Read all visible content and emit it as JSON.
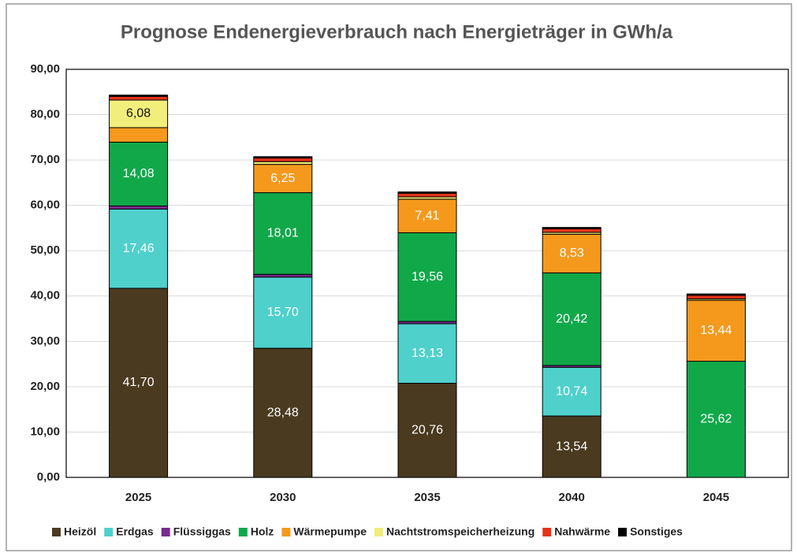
{
  "chart_data": {
    "type": "stacked_bar",
    "title": "Prognose Endenergieverbrauch nach Energieträger in GWh/a",
    "categories": [
      "2025",
      "2030",
      "2035",
      "2040",
      "2045"
    ],
    "ylim": [
      0,
      90
    ],
    "yticks": [
      {
        "value": 0,
        "label": "0,00"
      },
      {
        "value": 10,
        "label": "10,00"
      },
      {
        "value": 20,
        "label": "20,00"
      },
      {
        "value": 30,
        "label": "30,00"
      },
      {
        "value": 40,
        "label": "40,00"
      },
      {
        "value": 50,
        "label": "50,00"
      },
      {
        "value": 60,
        "label": "60,00"
      },
      {
        "value": 70,
        "label": "70,00"
      },
      {
        "value": 80,
        "label": "80,00"
      },
      {
        "value": 90,
        "label": "90,00"
      }
    ],
    "grid": true,
    "legend": "bottom",
    "series": [
      {
        "name": "Heizöl",
        "color": "#4a3a1f",
        "label_color": "#ffffff",
        "values": [
          41.7,
          28.48,
          20.76,
          13.54,
          0
        ],
        "value_labels": [
          "41,70",
          "28,48",
          "20,76",
          "13,54",
          null
        ]
      },
      {
        "name": "Erdgas",
        "color": "#4fd0cb",
        "label_color": "#ffffff",
        "values": [
          17.46,
          15.7,
          13.13,
          10.74,
          0
        ],
        "value_labels": [
          "17,46",
          "15,70",
          "13,13",
          "10,74",
          null
        ]
      },
      {
        "name": "Flüssiggas",
        "color": "#7a2a8e",
        "label_color": "#ffffff",
        "values": [
          0.7,
          0.6,
          0.5,
          0.4,
          0
        ],
        "value_labels": [
          null,
          null,
          null,
          null,
          null
        ]
      },
      {
        "name": "Holz",
        "color": "#11a84a",
        "label_color": "#ffffff",
        "values": [
          14.08,
          18.01,
          19.56,
          20.42,
          25.62
        ],
        "value_labels": [
          "14,08",
          "18,01",
          "19,56",
          "20,42",
          "25,62"
        ]
      },
      {
        "name": "Wärmepumpe",
        "color": "#f5991d",
        "label_color": "#ffffff",
        "values": [
          3.2,
          6.25,
          7.41,
          8.53,
          13.44
        ],
        "value_labels": [
          null,
          "6,25",
          "7,41",
          "8,53",
          "13,44"
        ]
      },
      {
        "name": "Nachtstromspeicherheizung",
        "color": "#f2ee7c",
        "label_color": "#111111",
        "values": [
          6.08,
          0.6,
          0.5,
          0.4,
          0.3
        ],
        "value_labels": [
          "6,08",
          null,
          null,
          null,
          null
        ]
      },
      {
        "name": "Nahwärme",
        "color": "#e4331b",
        "label_color": "#ffffff",
        "values": [
          0.8,
          0.8,
          0.8,
          0.8,
          0.8
        ],
        "value_labels": [
          null,
          null,
          null,
          null,
          null
        ]
      },
      {
        "name": "Sonstiges",
        "color": "#000000",
        "label_color": "#ffffff",
        "values": [
          0.3,
          0.3,
          0.3,
          0.3,
          0.3
        ],
        "value_labels": [
          null,
          null,
          null,
          null,
          null
        ]
      }
    ]
  }
}
